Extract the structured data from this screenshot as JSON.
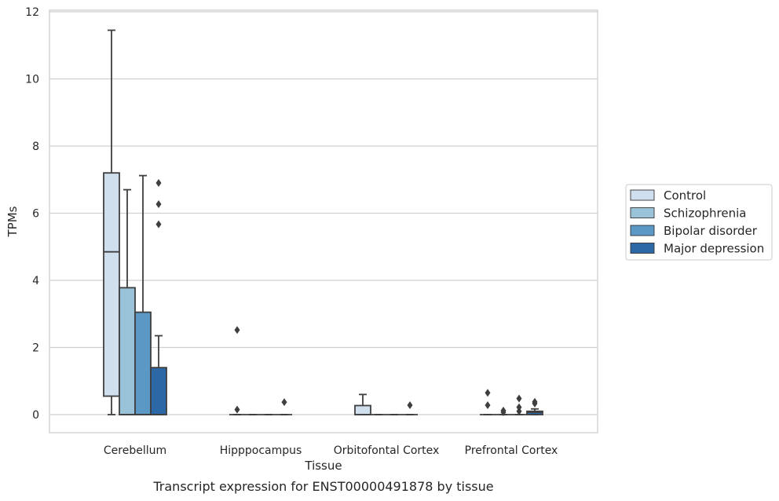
{
  "chart_data": {
    "type": "box",
    "xlabel": "Tissue",
    "ylabel": "TPMs",
    "caption": "Transcript expression for ENST00000491878 by tissue",
    "ylim": [
      -0.55,
      12.1
    ],
    "yticks": [
      0,
      2,
      4,
      6,
      8,
      10,
      12
    ],
    "grid": "horizontal",
    "legend_position": "right",
    "categories": [
      "Cerebellum",
      "Hipppocampus",
      "Orbitofontal Cortex",
      "Prefrontal Cortex"
    ],
    "series": [
      {
        "name": "Control",
        "color": "#cfdfee",
        "boxes": [
          {
            "whislo": 0,
            "q1": 0.55,
            "med": 4.85,
            "q3": 7.2,
            "whishi": 11.45,
            "fliers": []
          },
          {
            "whislo": 0,
            "q1": 0,
            "med": 0,
            "q3": 0,
            "whishi": 0,
            "fliers": [
              0.15,
              2.52
            ]
          },
          {
            "whislo": 0,
            "q1": 0,
            "med": 0,
            "q3": 0.27,
            "whishi": 0.6,
            "fliers": []
          },
          {
            "whislo": 0,
            "q1": 0,
            "med": 0,
            "q3": 0,
            "whishi": 0,
            "fliers": [
              0.28,
              0.65
            ]
          }
        ]
      },
      {
        "name": "Schizophrenia",
        "color": "#9ac2d8",
        "boxes": [
          {
            "whislo": 0,
            "q1": 0,
            "med": 0,
            "q3": 3.78,
            "whishi": 6.7,
            "fliers": []
          },
          {
            "whislo": 0,
            "q1": 0,
            "med": 0,
            "q3": 0,
            "whishi": 0,
            "fliers": []
          },
          {
            "whislo": 0,
            "q1": 0,
            "med": 0,
            "q3": 0,
            "whishi": 0,
            "fliers": []
          },
          {
            "whislo": 0,
            "q1": 0,
            "med": 0,
            "q3": 0,
            "whishi": 0,
            "fliers": [
              0.07,
              0.12
            ]
          }
        ]
      },
      {
        "name": "Bipolar disorder",
        "color": "#5b98c5",
        "boxes": [
          {
            "whislo": 0,
            "q1": 0,
            "med": 0,
            "q3": 3.05,
            "whishi": 7.12,
            "fliers": []
          },
          {
            "whislo": 0,
            "q1": 0,
            "med": 0,
            "q3": 0,
            "whishi": 0,
            "fliers": []
          },
          {
            "whislo": 0,
            "q1": 0,
            "med": 0,
            "q3": 0,
            "whishi": 0,
            "fliers": []
          },
          {
            "whislo": 0,
            "q1": 0,
            "med": 0,
            "q3": 0,
            "whishi": 0,
            "fliers": [
              0.1,
              0.22,
              0.48
            ]
          }
        ]
      },
      {
        "name": "Major depression",
        "color": "#2c67a6",
        "boxes": [
          {
            "whislo": 0,
            "q1": 0,
            "med": 0,
            "q3": 1.4,
            "whishi": 2.35,
            "fliers": [
              5.67,
              6.27,
              6.9
            ]
          },
          {
            "whislo": 0,
            "q1": 0,
            "med": 0,
            "q3": 0,
            "whishi": 0,
            "fliers": [
              0.37
            ]
          },
          {
            "whislo": 0,
            "q1": 0,
            "med": 0,
            "q3": 0,
            "whishi": 0,
            "fliers": [
              0.28
            ]
          },
          {
            "whislo": 0,
            "q1": 0,
            "med": 0.07,
            "q3": 0.1,
            "whishi": 0.17,
            "fliers": [
              0.33,
              0.38
            ]
          }
        ]
      }
    ]
  }
}
